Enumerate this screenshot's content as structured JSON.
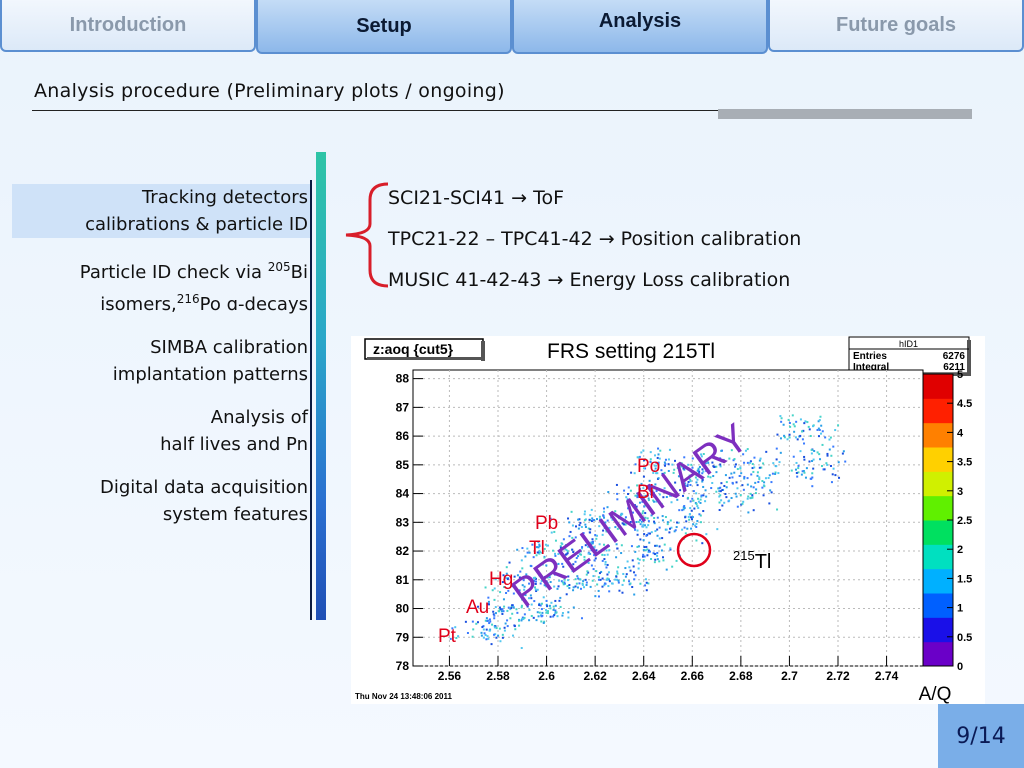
{
  "tabs": [
    "Introduction",
    "Setup",
    "Analysis",
    "Future goals"
  ],
  "subtitle": "Analysis procedure (Preliminary plots / ongoing)",
  "side_items": [
    {
      "l1": "Tracking detectors",
      "l2": "calibrations & particle ID"
    },
    {
      "l1a": "Particle ID check via ",
      "sup1": "205",
      "l1b": "Bi",
      "l2a": "isomers,",
      "sup2": "216",
      "l2b": "Po ɑ-decays"
    },
    {
      "l1": "SIMBA calibration",
      "l2": "implantation patterns"
    },
    {
      "l1": "Analysis of",
      "l2": "half lives and Pn"
    },
    {
      "l1": "Digital data acquisition",
      "l2": "system features"
    }
  ],
  "bullets": [
    "SCI21-SCI41 → ToF",
    "TPC21-22 – TPC41-42 → Position calibration",
    "MUSIC 41-42-43 → Energy Loss calibration"
  ],
  "plot": {
    "name_box": "z:aoq {cut5}",
    "title": "FRS setting 215Tl",
    "stats": {
      "name": "hID1",
      "entries_label": "Entries",
      "entries": "6276",
      "integral_label": "Integral",
      "integral": "6211"
    },
    "watermark": "PRELIMINARY",
    "timestamp": "Thu Nov 24 13:48:06 2011",
    "xlabel": "A/Q",
    "element_labels": [
      "Po",
      "Bi",
      "Pb",
      "Tl",
      "Hg",
      "Au",
      "Pt"
    ],
    "isotope_mass": "215",
    "isotope_elem": "Tl",
    "palette_colors": [
      "#6a00c8",
      "#1a10e8",
      "#0060ff",
      "#00b0ff",
      "#00e0c0",
      "#00e060",
      "#60f000",
      "#d0f000",
      "#ffd000",
      "#ff8000",
      "#ff2000",
      "#e00000"
    ]
  },
  "chart_data": {
    "type": "heatmap",
    "xlim": [
      2.545,
      2.755
    ],
    "ylim": [
      78,
      88.3
    ],
    "x_ticks": [
      "2.56",
      "2.58",
      "2.6",
      "2.62",
      "2.64",
      "2.66",
      "2.68",
      "2.7",
      "2.72",
      "2.74"
    ],
    "y_ticks": [
      "78",
      "79",
      "80",
      "81",
      "82",
      "83",
      "84",
      "85",
      "86",
      "87",
      "88"
    ],
    "z_ticks": [
      "0",
      "0.5",
      "1",
      "1.5",
      "2",
      "2.5",
      "3",
      "3.5",
      "4",
      "4.5",
      "5"
    ],
    "zlim": [
      0,
      5
    ],
    "clusters": [
      {
        "x": 2.705,
        "y": 86.2
      },
      {
        "x": 2.71,
        "y": 85.0
      },
      {
        "x": 2.685,
        "y": 84.9
      },
      {
        "x": 2.665,
        "y": 84.9
      },
      {
        "x": 2.645,
        "y": 85.0
      },
      {
        "x": 2.66,
        "y": 84.0
      },
      {
        "x": 2.68,
        "y": 84.0
      },
      {
        "x": 2.64,
        "y": 84.0
      },
      {
        "x": 2.615,
        "y": 83.0
      },
      {
        "x": 2.635,
        "y": 83.0
      },
      {
        "x": 2.655,
        "y": 83.0
      },
      {
        "x": 2.6,
        "y": 82.0
      },
      {
        "x": 2.62,
        "y": 82.0
      },
      {
        "x": 2.64,
        "y": 82.0
      },
      {
        "x": 2.59,
        "y": 81.0
      },
      {
        "x": 2.61,
        "y": 81.0
      },
      {
        "x": 2.63,
        "y": 81.0
      },
      {
        "x": 2.585,
        "y": 80.0
      },
      {
        "x": 2.6,
        "y": 80.0
      },
      {
        "x": 2.575,
        "y": 79.2
      }
    ]
  },
  "page_number": "9/14"
}
